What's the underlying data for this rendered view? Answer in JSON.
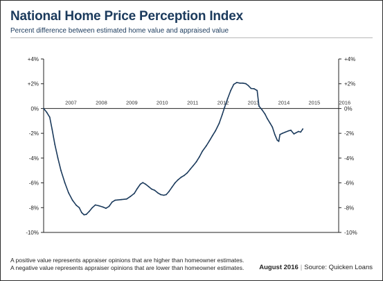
{
  "header": {
    "title": "National Home Price Perception Index",
    "subtitle": "Percent difference between estimated home value and appraised value"
  },
  "footer": {
    "note_line1": "A positive value represents appraiser opinions that are higher than homeowner estimates.",
    "note_line2": "A negative value represents appraiser opinions that are lower than homeowner estimates.",
    "date": "August 2016",
    "separator": "|",
    "source": "Source: Quicken Loans"
  },
  "chart_data": {
    "type": "line",
    "title": "National Home Price Perception Index",
    "subtitle": "Percent difference between estimated home value and appraised value",
    "xlabel": "",
    "ylabel": "",
    "x_tick_labels": [
      "2007",
      "2008",
      "2009",
      "2010",
      "2011",
      "2012",
      "2013",
      "2014",
      "2015",
      "2016"
    ],
    "y_ticks": [
      4,
      2,
      0,
      -2,
      -4,
      -6,
      -8,
      -10
    ],
    "y_tick_labels": [
      "+4%",
      "+2%",
      "0%",
      "-2%",
      "-4%",
      "-6%",
      "-8%",
      "-10%"
    ],
    "ylim": [
      -10,
      4
    ],
    "xlim": [
      2006.6,
      2016.3
    ],
    "grid": false,
    "zero_line": true,
    "line_color": "#1b3a5c",
    "series": [
      {
        "values": [
          [
            2006.6,
            0.0
          ],
          [
            2006.7,
            -0.3
          ],
          [
            2006.8,
            -0.7
          ],
          [
            2006.88,
            -1.7
          ],
          [
            2006.97,
            -2.9
          ],
          [
            2007.07,
            -4.0
          ],
          [
            2007.17,
            -5.0
          ],
          [
            2007.3,
            -6.0
          ],
          [
            2007.42,
            -6.8
          ],
          [
            2007.55,
            -7.4
          ],
          [
            2007.67,
            -7.8
          ],
          [
            2007.77,
            -8.0
          ],
          [
            2007.85,
            -8.4
          ],
          [
            2007.93,
            -8.58
          ],
          [
            2008.0,
            -8.55
          ],
          [
            2008.1,
            -8.3
          ],
          [
            2008.2,
            -8.0
          ],
          [
            2008.3,
            -7.78
          ],
          [
            2008.42,
            -7.85
          ],
          [
            2008.55,
            -7.95
          ],
          [
            2008.65,
            -8.05
          ],
          [
            2008.75,
            -7.9
          ],
          [
            2008.85,
            -7.55
          ],
          [
            2008.95,
            -7.4
          ],
          [
            2009.15,
            -7.35
          ],
          [
            2009.33,
            -7.3
          ],
          [
            2009.45,
            -7.1
          ],
          [
            2009.58,
            -6.85
          ],
          [
            2009.68,
            -6.45
          ],
          [
            2009.78,
            -6.1
          ],
          [
            2009.86,
            -5.98
          ],
          [
            2009.95,
            -6.1
          ],
          [
            2010.05,
            -6.3
          ],
          [
            2010.15,
            -6.5
          ],
          [
            2010.25,
            -6.6
          ],
          [
            2010.35,
            -6.8
          ],
          [
            2010.45,
            -6.95
          ],
          [
            2010.55,
            -7.0
          ],
          [
            2010.63,
            -6.95
          ],
          [
            2010.72,
            -6.7
          ],
          [
            2010.82,
            -6.35
          ],
          [
            2010.92,
            -6.0
          ],
          [
            2011.02,
            -5.75
          ],
          [
            2011.12,
            -5.55
          ],
          [
            2011.22,
            -5.4
          ],
          [
            2011.32,
            -5.2
          ],
          [
            2011.42,
            -4.9
          ],
          [
            2011.52,
            -4.6
          ],
          [
            2011.62,
            -4.3
          ],
          [
            2011.72,
            -3.9
          ],
          [
            2011.82,
            -3.45
          ],
          [
            2011.95,
            -3.0
          ],
          [
            2012.05,
            -2.6
          ],
          [
            2012.15,
            -2.2
          ],
          [
            2012.25,
            -1.8
          ],
          [
            2012.37,
            -1.2
          ],
          [
            2012.47,
            -0.5
          ],
          [
            2012.55,
            0.1
          ],
          [
            2012.65,
            0.8
          ],
          [
            2012.75,
            1.45
          ],
          [
            2012.85,
            1.95
          ],
          [
            2012.95,
            2.1
          ],
          [
            2013.05,
            2.05
          ],
          [
            2013.15,
            2.05
          ],
          [
            2013.25,
            2.0
          ],
          [
            2013.33,
            1.85
          ],
          [
            2013.42,
            1.62
          ],
          [
            2013.52,
            1.6
          ],
          [
            2013.62,
            1.45
          ],
          [
            2013.68,
            0.2
          ],
          [
            2013.78,
            -0.1
          ],
          [
            2013.88,
            -0.45
          ],
          [
            2013.95,
            -0.8
          ],
          [
            2014.05,
            -1.2
          ],
          [
            2014.12,
            -1.5
          ],
          [
            2014.2,
            -2.1
          ],
          [
            2014.28,
            -2.55
          ],
          [
            2014.33,
            -2.65
          ],
          [
            2014.37,
            -2.1
          ],
          [
            2014.45,
            -2.0
          ],
          [
            2014.55,
            -1.9
          ],
          [
            2014.65,
            -1.8
          ],
          [
            2014.73,
            -1.75
          ],
          [
            2014.83,
            -2.05
          ],
          [
            2014.9,
            -1.95
          ],
          [
            2014.98,
            -1.85
          ],
          [
            2015.05,
            -1.9
          ],
          [
            2015.12,
            -1.65
          ]
        ]
      }
    ]
  }
}
